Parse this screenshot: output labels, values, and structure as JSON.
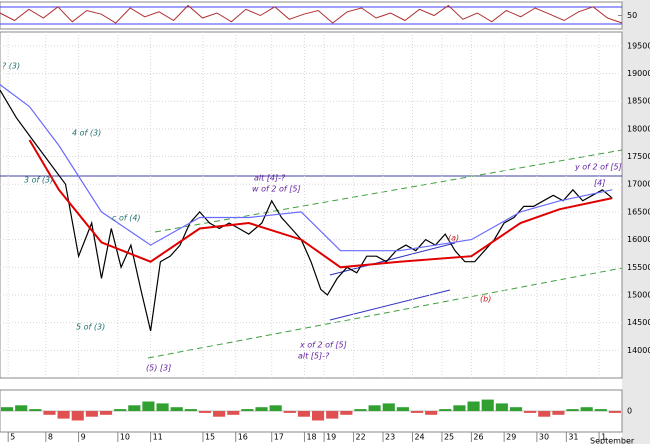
{
  "chart_data": {
    "type": "line",
    "xlim": [
      0,
      19
    ],
    "xticks": [
      {
        "value": 0.25,
        "label": "5"
      },
      {
        "value": 1.4,
        "label": "8"
      },
      {
        "value": 2.4,
        "label": "9"
      },
      {
        "value": 3.6,
        "label": "10"
      },
      {
        "value": 4.6,
        "label": "11"
      },
      {
        "value": 6.2,
        "label": "15"
      },
      {
        "value": 7.2,
        "label": "16"
      },
      {
        "value": 8.3,
        "label": "17"
      },
      {
        "value": 9.3,
        "label": "18"
      },
      {
        "value": 9.9,
        "label": "19"
      },
      {
        "value": 10.8,
        "label": "22"
      },
      {
        "value": 11.7,
        "label": "23"
      },
      {
        "value": 12.6,
        "label": "24"
      },
      {
        "value": 13.5,
        "label": "25"
      },
      {
        "value": 14.4,
        "label": "26"
      },
      {
        "value": 15.4,
        "label": "29"
      },
      {
        "value": 16.4,
        "label": "30"
      },
      {
        "value": 17.3,
        "label": "31"
      },
      {
        "value": 18.3,
        "label": "1"
      }
    ],
    "month_label": "September",
    "ylim": [
      13500,
      19750
    ],
    "yticks": [
      14000,
      14500,
      15000,
      15500,
      16000,
      16500,
      17000,
      17500,
      18000,
      18500,
      19000,
      19500
    ],
    "grid": true,
    "series": [
      {
        "color": "#000000",
        "x": [
          0,
          0.5,
          1,
          1.5,
          2,
          2.4,
          2.8,
          3.1,
          3.4,
          3.7,
          4,
          4.3,
          4.6,
          4.9,
          5.2,
          5.5,
          5.8,
          6.1,
          6.4,
          6.7,
          7,
          7.3,
          7.6,
          8,
          8.3,
          8.6,
          8.9,
          9.2,
          9.5,
          9.8,
          10,
          10.3,
          10.6,
          10.9,
          11.2,
          11.5,
          11.8,
          12.1,
          12.4,
          12.7,
          13,
          13.3,
          13.6,
          13.9,
          14.2,
          14.5,
          14.8,
          15.1,
          15.4,
          15.7,
          16,
          16.3,
          16.6,
          16.9,
          17.2,
          17.5,
          17.8,
          18.1,
          18.4,
          18.7
        ],
        "values": [
          18700,
          18200,
          17800,
          17400,
          17000,
          15700,
          16300,
          15300,
          16200,
          15500,
          15900,
          15100,
          14350,
          15600,
          15700,
          15900,
          16300,
          16500,
          16300,
          16200,
          16300,
          16200,
          16100,
          16300,
          16700,
          16400,
          16200,
          16000,
          15600,
          15100,
          15000,
          15300,
          15500,
          15400,
          15700,
          15700,
          15600,
          15800,
          15900,
          15800,
          16000,
          15900,
          16100,
          15800,
          15600,
          15600,
          15800,
          16000,
          16300,
          16400,
          16600,
          16600,
          16700,
          16800,
          16700,
          16900,
          16700,
          16800,
          16900,
          16750
        ]
      },
      {
        "color": "#e00000",
        "x": [
          0.9,
          1.8,
          3.1,
          4.6,
          6.1,
          7.6,
          9.2,
          10.4,
          12.2,
          14.4,
          15.9,
          17.1,
          18.7
        ],
        "values": [
          17800,
          16900,
          15950,
          15600,
          16200,
          16300,
          16000,
          15500,
          15600,
          15700,
          16300,
          16550,
          16750
        ]
      },
      {
        "color": "#6a6aff",
        "x": [
          0,
          0.9,
          1.8,
          3.1,
          4.6,
          6.1,
          7.6,
          9.2,
          10.4,
          12.2,
          14.4,
          15.9,
          17.1,
          18.7
        ],
        "values": [
          18800,
          18400,
          17700,
          16500,
          15900,
          16400,
          16400,
          16500,
          15800,
          15800,
          16000,
          16500,
          16700,
          16900
        ]
      }
    ],
    "annotations": [
      "? (3)",
      "3 of (3)",
      "4 of (3)",
      "5 of (3)",
      "c of (4)",
      "(5) [3]",
      "alt [4]-?",
      "w of 2 of [5]",
      "x of 2 of [5]",
      "alt [5]-?",
      "(a)",
      "(b)",
      "y of 2 of [5]",
      "[4]"
    ],
    "oscillator": {
      "ylim": [
        0,
        100
      ],
      "yticks": [
        50
      ],
      "color": "#b03030",
      "values": [
        60,
        30,
        75,
        40,
        85,
        25,
        70,
        55,
        20,
        80,
        45,
        65,
        30,
        90,
        40,
        60,
        25,
        75,
        50,
        85,
        35,
        55,
        70,
        20,
        65,
        80,
        40,
        60,
        30,
        75,
        50,
        90,
        35,
        60,
        25,
        70,
        45,
        80,
        55,
        30,
        65,
        85,
        40,
        20
      ]
    },
    "histogram": {
      "ylim": [
        -1,
        1
      ],
      "yticks": [
        0
      ],
      "pos_color": "#30a030",
      "neg_color": "#e05050",
      "values": [
        0.2,
        0.3,
        0.1,
        -0.2,
        -0.4,
        -0.5,
        -0.3,
        -0.2,
        0.1,
        0.3,
        0.5,
        0.4,
        0.2,
        0.1,
        -0.1,
        -0.3,
        -0.2,
        0.1,
        0.2,
        0.3,
        -0.1,
        -0.3,
        -0.5,
        -0.4,
        -0.2,
        0.1,
        0.3,
        0.4,
        0.2,
        -0.1,
        -0.2,
        0.1,
        0.3,
        0.5,
        0.6,
        0.4,
        0.2,
        -0.1,
        -0.3,
        -0.2,
        0.1,
        0.2,
        0.1,
        -0.1
      ]
    }
  }
}
